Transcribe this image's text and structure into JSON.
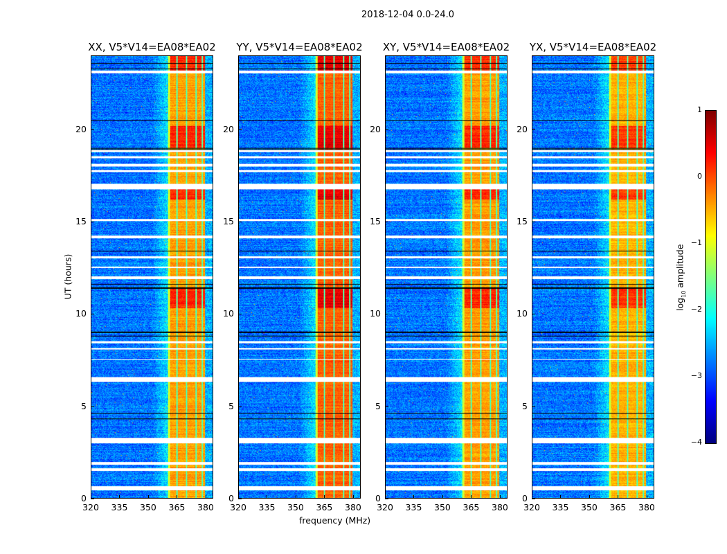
{
  "suptitle": "2018-12-04 0.0-24.0",
  "chart_data": {
    "type": "heatmap",
    "title": "2018-12-04 0.0-24.0",
    "xlabel": "frequency (MHz)",
    "ylabel": "UT (hours)",
    "xlim": [
      320,
      384
    ],
    "ylim": [
      0,
      24
    ],
    "xticks": [
      320,
      335,
      350,
      365,
      380
    ],
    "yticks": [
      0,
      5,
      10,
      15,
      20
    ],
    "panels": [
      {
        "title": "XX, V5*V14=EA08*EA02",
        "band_gain": 0.0
      },
      {
        "title": "YY, V5*V14=EA08*EA02",
        "band_gain": 0.3
      },
      {
        "title": "XY, V5*V14=EA08*EA02",
        "band_gain": 0.0
      },
      {
        "title": "YX, V5*V14=EA08*EA02",
        "band_gain": -0.1
      }
    ],
    "strong_band_mhz": [
      360.5,
      380
    ],
    "band_channel_gaps_mhz": [
      365.3,
      370.2,
      375.2,
      378.5
    ],
    "background_log_amp": -2.8,
    "band_log_amp": -0.4,
    "bright_time_ranges_h": [
      [
        23.2,
        24
      ],
      [
        19,
        20.2
      ],
      [
        16.2,
        16.9
      ],
      [
        10.3,
        11.4
      ]
    ],
    "flagged_time_ranges_h": [
      [
        23.05,
        23.2
      ],
      [
        18.8,
        18.9
      ],
      [
        18.45,
        18.55
      ],
      [
        18.0,
        18.15
      ],
      [
        17.7,
        17.8
      ],
      [
        16.75,
        17.05
      ],
      [
        15.05,
        15.15
      ],
      [
        14.1,
        14.25
      ],
      [
        13.0,
        13.12
      ],
      [
        12.5,
        12.58
      ],
      [
        11.9,
        12.05
      ],
      [
        8.4,
        8.52
      ],
      [
        8.05,
        8.15
      ],
      [
        7.5,
        7.55
      ],
      [
        6.3,
        6.55
      ],
      [
        2.98,
        3.25
      ],
      [
        1.8,
        1.95
      ],
      [
        1.45,
        1.6
      ],
      [
        0.4,
        0.65
      ]
    ],
    "colorbar": {
      "label": "log10 amplitude",
      "label_base": "log",
      "label_sub": "10",
      "label_rest": " amplitude",
      "range": [
        -4,
        1
      ],
      "ticks": [
        "1",
        "0",
        "−1",
        "−2",
        "−3",
        "−4"
      ],
      "tick_values": [
        1,
        0,
        -1,
        -2,
        -3,
        -4
      ],
      "colormap": "jet"
    }
  }
}
